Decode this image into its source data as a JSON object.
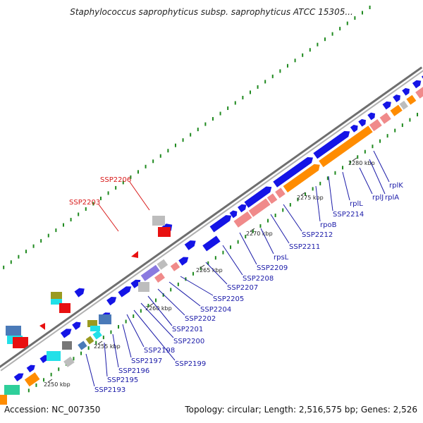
{
  "title": "Staphylococcus saprophyticus subsp. saprophyticus ATCC 15305...",
  "footer": {
    "accession": "Accession: NC_007350",
    "summary": "Topology: circular; Length: 2,516,575 bp; Genes: 2,526"
  },
  "colors": {
    "backbone": "#8a8a8a",
    "gene_blue": "#1414e6",
    "gene_orange": "#ff8c00",
    "gene_pink": "#f08a8a",
    "gene_red": "#e81010",
    "gene_grey": "#bdbdbd",
    "gene_cyan": "#22e0e8",
    "gene_purple": "#8a7ae0",
    "gene_teal": "#2ecf9a",
    "gene_olive": "#9a9a20",
    "gene_steel": "#4a7ab8",
    "dot_green": "#1f8a1f",
    "label_blue": "#1a1aa8",
    "label_red": "#d81818"
  },
  "ticks": [
    {
      "label": "2250 kbp"
    },
    {
      "label": "2255 kbp"
    },
    {
      "label": "2260 kbp"
    },
    {
      "label": "2265 kbp"
    },
    {
      "label": "2270 kbp"
    },
    {
      "label": "2275 kbp"
    },
    {
      "label": "2280 kbp"
    }
  ],
  "gene_labels_blue": [
    {
      "label": "SSP2193"
    },
    {
      "label": "SSP2195"
    },
    {
      "label": "SSP2196"
    },
    {
      "label": "SSP2197"
    },
    {
      "label": "SSP2198"
    },
    {
      "label": "SSP2199"
    },
    {
      "label": "SSP2200"
    },
    {
      "label": "SSP2201"
    },
    {
      "label": "SSP2202"
    },
    {
      "label": "SSP2204"
    },
    {
      "label": "SSP2205"
    },
    {
      "label": "SSP2207"
    },
    {
      "label": "SSP2208"
    },
    {
      "label": "SSP2209"
    },
    {
      "label": "rpsL"
    },
    {
      "label": "SSP2211"
    },
    {
      "label": "SSP2212"
    },
    {
      "label": "rpoB"
    },
    {
      "label": "SSP2214"
    },
    {
      "label": "rplL"
    },
    {
      "label": "rplJ"
    },
    {
      "label": "rplA"
    },
    {
      "label": "rplK"
    }
  ],
  "gene_labels_red": [
    {
      "label": "SSP2203"
    },
    {
      "label": "SSP2206"
    }
  ]
}
